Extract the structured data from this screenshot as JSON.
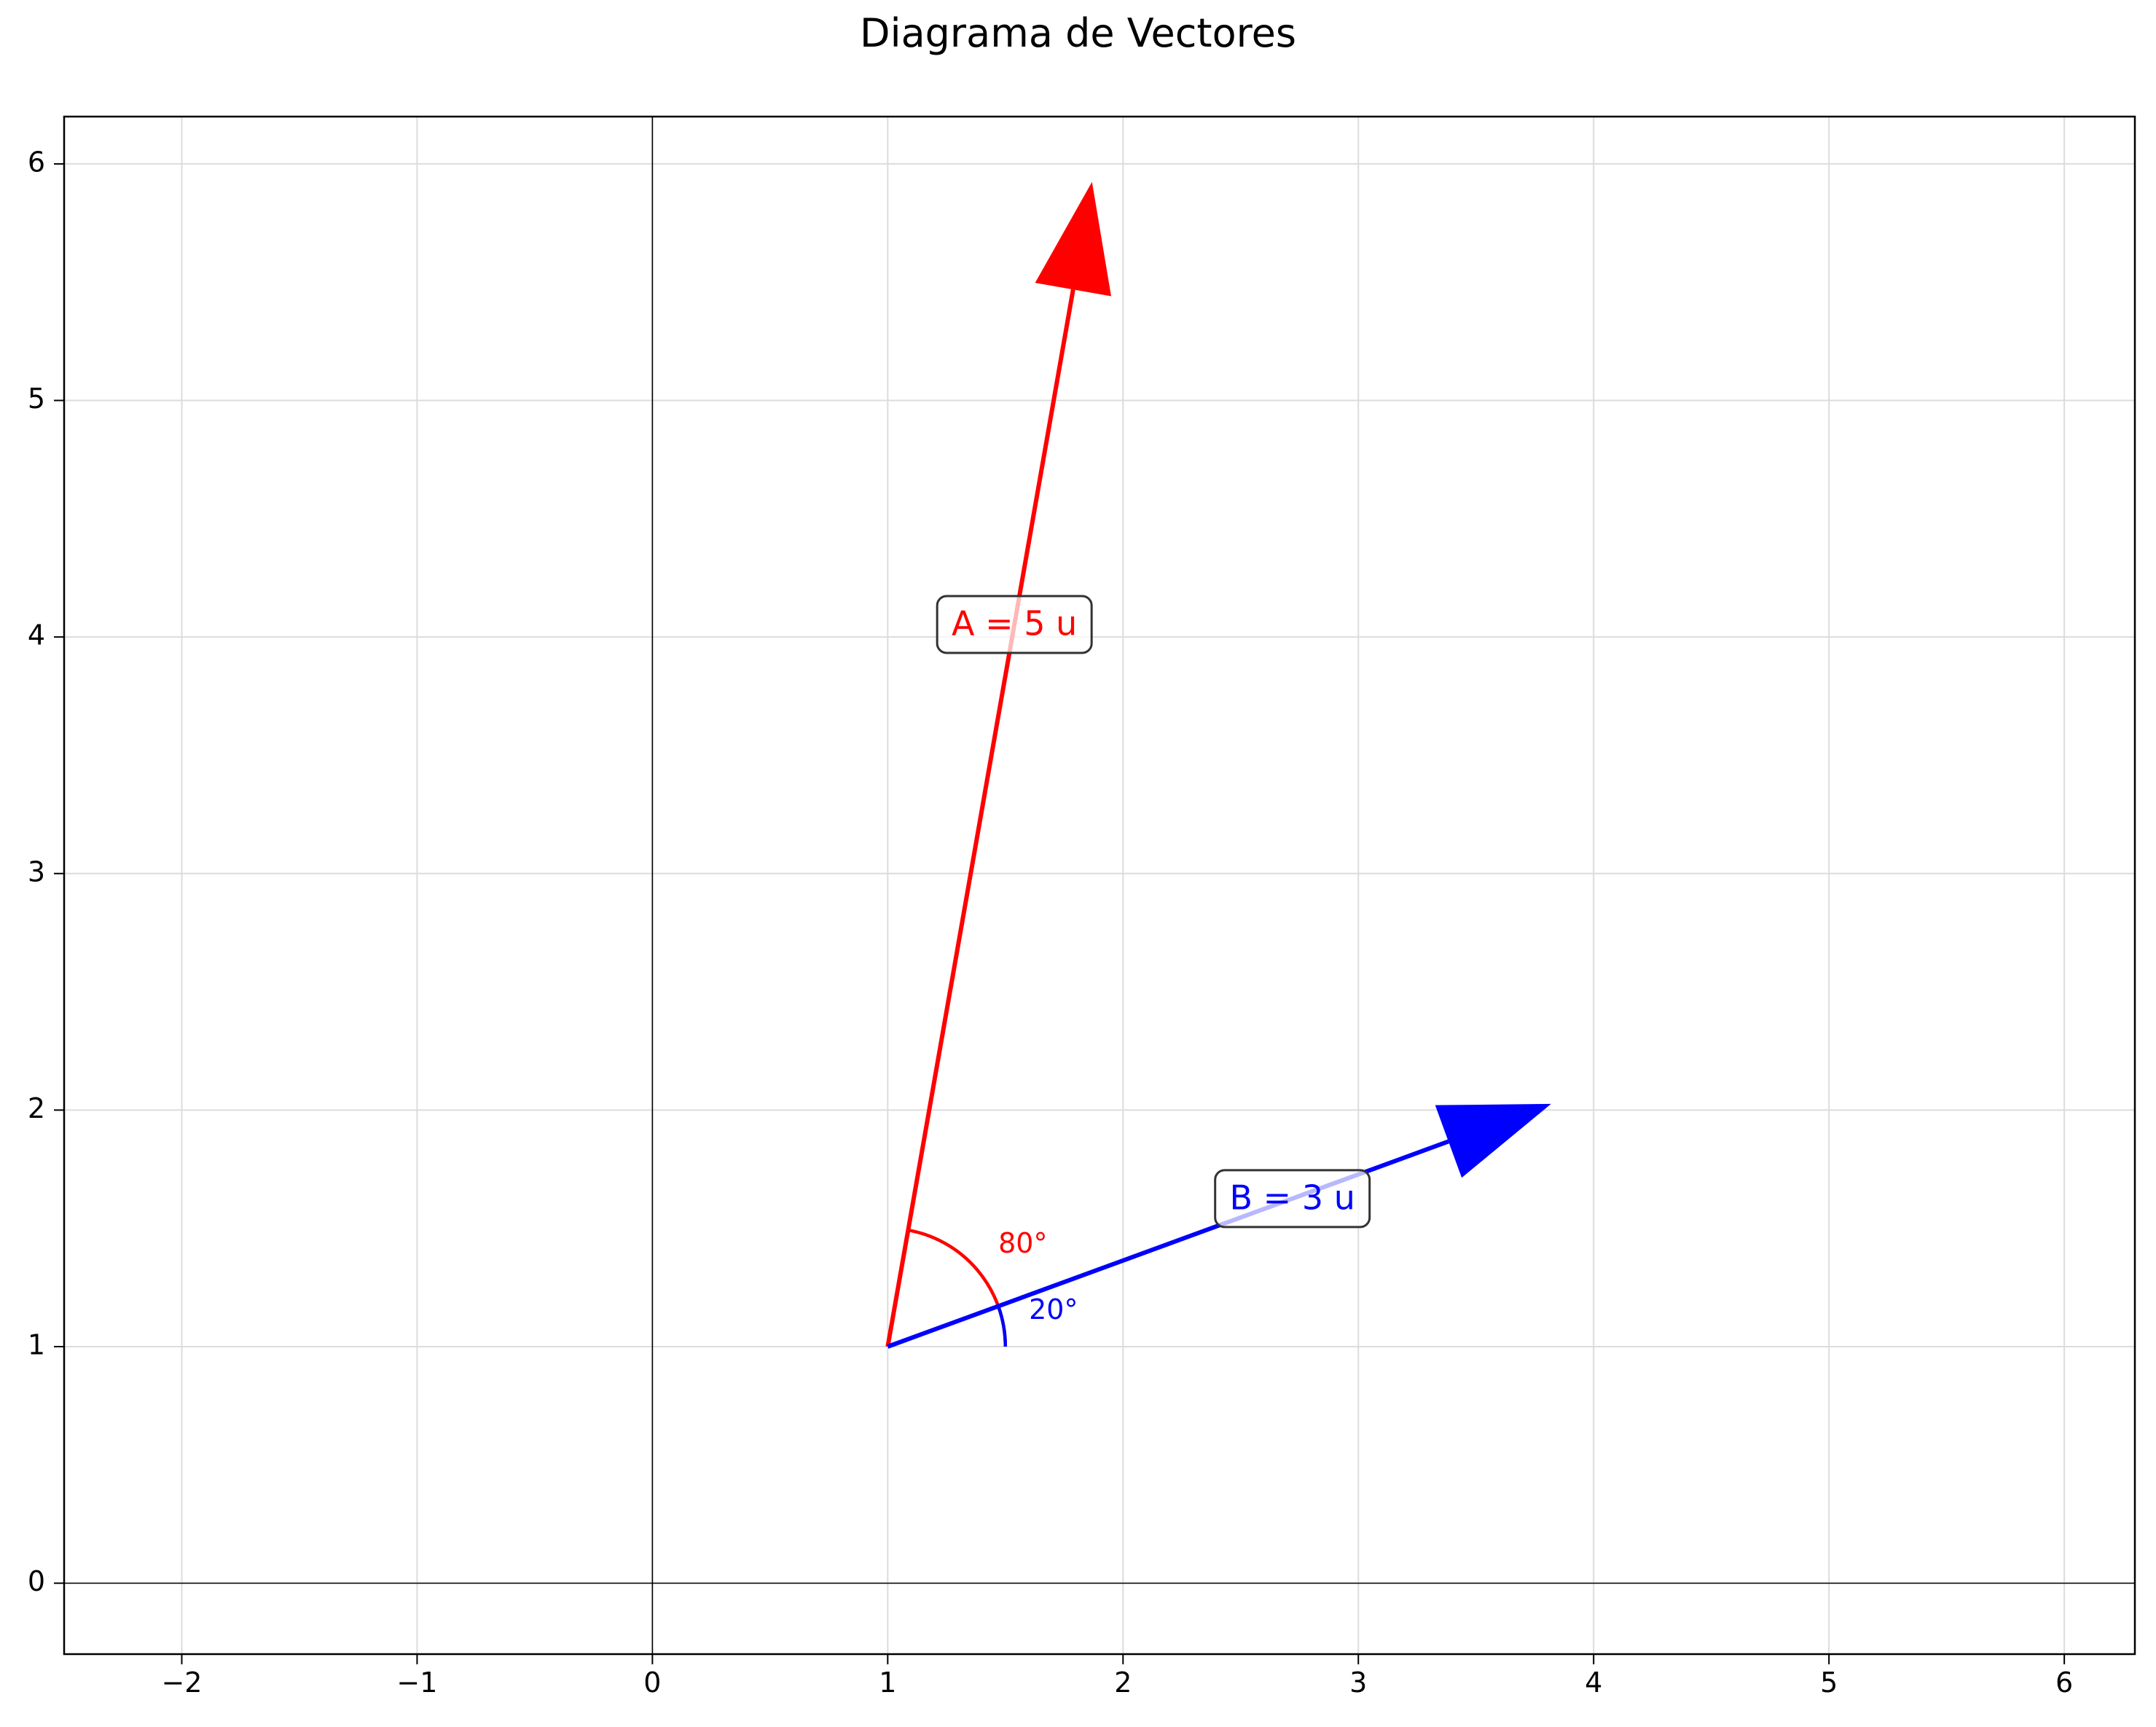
{
  "title": "Diagrama de Vectores",
  "chart_data": {
    "type": "vector",
    "title": "Diagrama de Vectores",
    "xlim": [
      -2.5,
      6.3
    ],
    "ylim": [
      -0.3,
      6.2
    ],
    "x_ticks": [
      -2,
      -1,
      0,
      1,
      2,
      3,
      4,
      5,
      6
    ],
    "y_ticks": [
      0,
      1,
      2,
      3,
      4,
      5,
      6
    ],
    "x_tick_labels": [
      "−2",
      "−1",
      "0",
      "1",
      "2",
      "3",
      "4",
      "5",
      "6"
    ],
    "y_tick_labels": [
      "0",
      "1",
      "2",
      "3",
      "4",
      "5",
      "6"
    ],
    "grid": true,
    "axis_lines": {
      "x": 0,
      "y": 0
    },
    "origin": [
      1,
      1
    ],
    "vectors": [
      {
        "id": "A",
        "label": "A = 5 u",
        "magnitude": 5,
        "angle_deg": 80,
        "angle_label": "80°",
        "color": "#ff0000"
      },
      {
        "id": "B",
        "label": "B = 3 u",
        "magnitude": 3,
        "angle_deg": 20,
        "angle_label": "20°",
        "color": "#0000ff"
      }
    ]
  }
}
